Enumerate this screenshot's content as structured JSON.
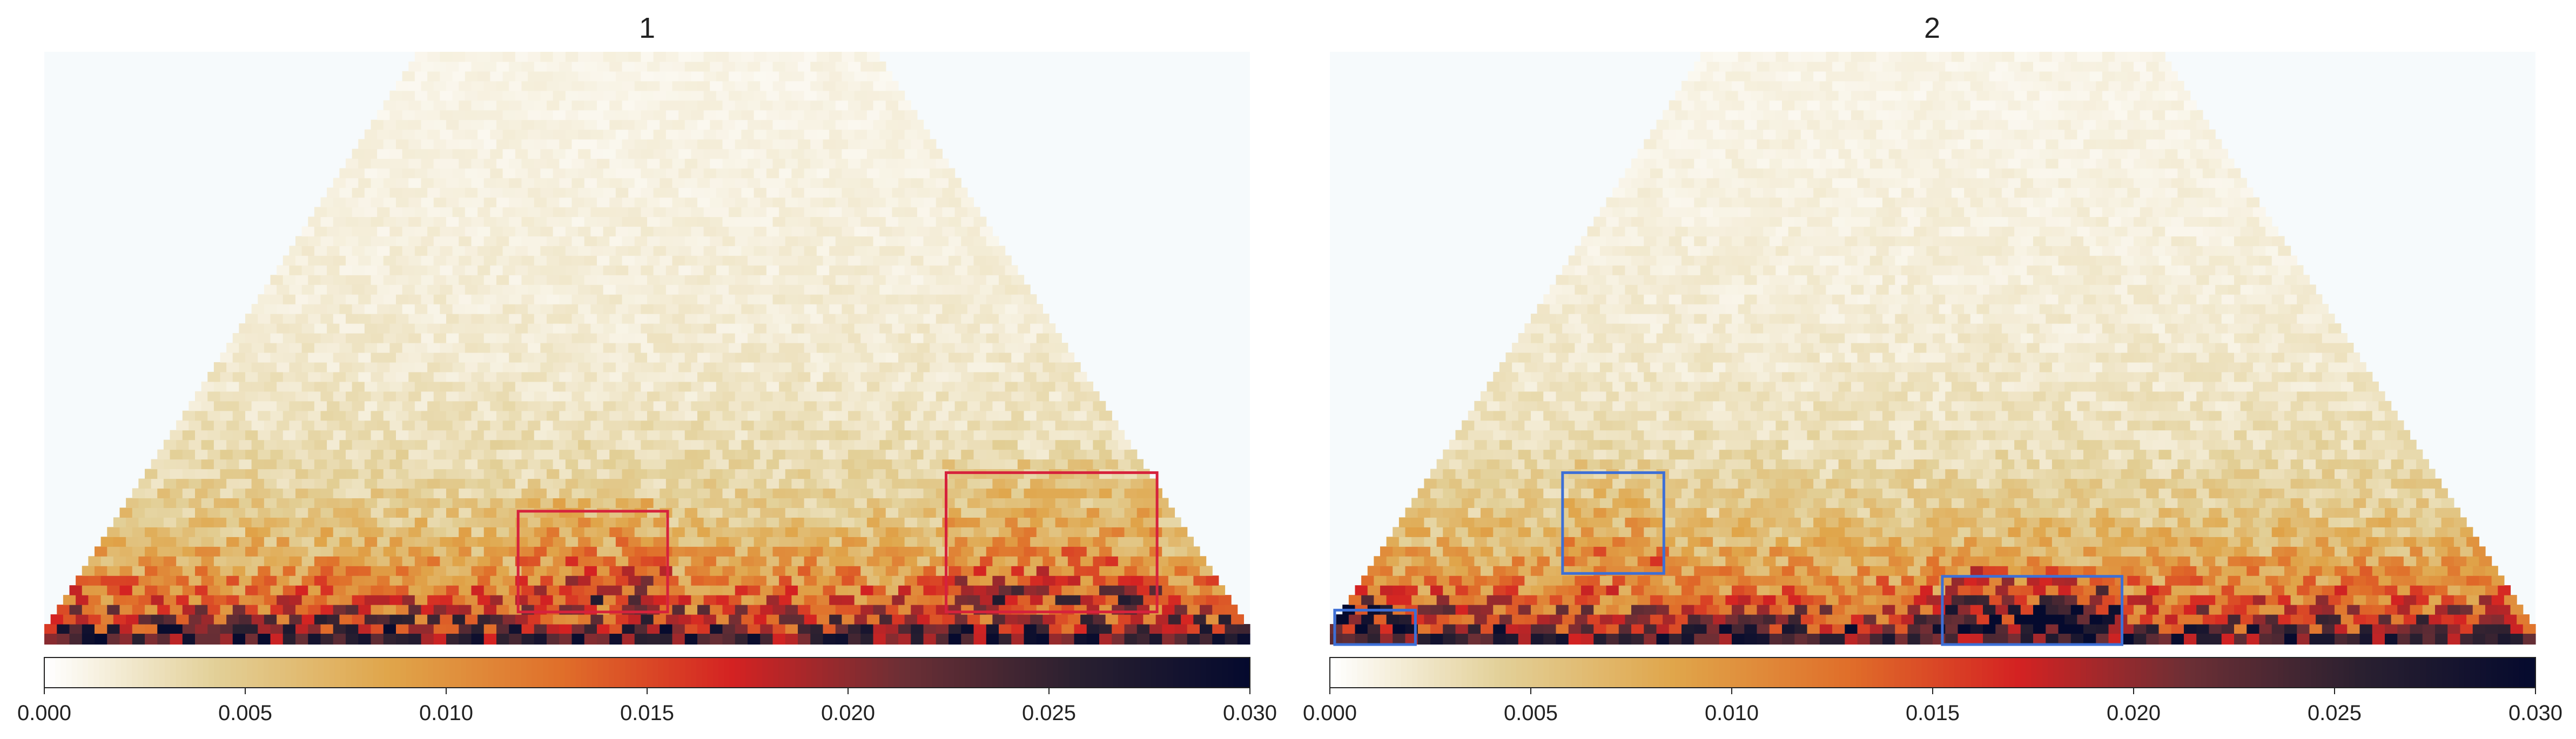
{
  "chart_data": [
    {
      "type": "heatmap",
      "title": "1",
      "shape": "triangle",
      "colorbar": {
        "min": 0.0,
        "max": 0.03,
        "ticks": [
          0.0,
          0.005,
          0.01,
          0.015,
          0.02,
          0.025,
          0.03
        ],
        "tick_labels": [
          "0.000",
          "0.005",
          "0.010",
          "0.015",
          "0.020",
          "0.025",
          "0.030"
        ],
        "colors": [
          "#ffffff",
          "#e2cf96",
          "#e0a54a",
          "#e06f2a",
          "#d42222",
          "#6b2f35",
          "#2a2030",
          "#050a2e"
        ]
      },
      "highlight_boxes": [
        {
          "color": "#d6223c",
          "x": [
            0.393,
            0.517
          ],
          "y": [
            0.055,
            0.225
          ]
        },
        {
          "color": "#d6223c",
          "x": [
            0.748,
            0.923
          ],
          "y": [
            0.055,
            0.29
          ]
        }
      ]
    },
    {
      "type": "heatmap",
      "title": "2",
      "shape": "triangle",
      "colorbar": {
        "min": 0.0,
        "max": 0.03,
        "ticks": [
          0.0,
          0.005,
          0.01,
          0.015,
          0.02,
          0.025,
          0.03
        ],
        "tick_labels": [
          "0.000",
          "0.005",
          "0.010",
          "0.015",
          "0.020",
          "0.025",
          "0.030"
        ],
        "colors": [
          "#ffffff",
          "#e2cf96",
          "#e0a54a",
          "#e06f2a",
          "#d42222",
          "#6b2f35",
          "#2a2030",
          "#050a2e"
        ]
      },
      "highlight_boxes": [
        {
          "color": "#3d6fd6",
          "x": [
            0.004,
            0.071
          ],
          "y": [
            0.0,
            0.058
          ]
        },
        {
          "color": "#3d6fd6",
          "x": [
            0.193,
            0.277
          ],
          "y": [
            0.12,
            0.29
          ]
        },
        {
          "color": "#3d6fd6",
          "x": [
            0.508,
            0.657
          ],
          "y": [
            0.0,
            0.115
          ]
        }
      ]
    }
  ]
}
